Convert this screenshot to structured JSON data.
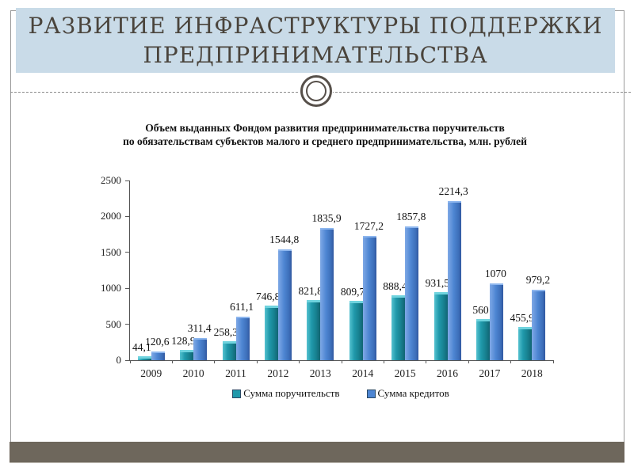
{
  "slide": {
    "title_line1": "РАЗВИТИЕ ИНФРАСТРУКТУРЫ ПОДДЕРЖКИ",
    "title_line2": "ПРЕДПРИНИМАТЕЛЬСТВА",
    "title_bg_color": "#c9dbe8",
    "title_text_color": "#4a443c",
    "footer_bar_color": "#6e675c"
  },
  "chart_data": {
    "type": "bar",
    "title_line1": "Объем выданных Фондом развития предпринимательства поручительств",
    "title_line2": "по обязательствам субъектов малого и среднего предпринимательства, млн. рублей",
    "categories": [
      "2009",
      "2010",
      "2011",
      "2012",
      "2013",
      "2014",
      "2015",
      "2016",
      "2017",
      "2018"
    ],
    "series": [
      {
        "name": "Сумма поручительств",
        "color": "#2099ab",
        "values": [
          44.1,
          128.9,
          258.3,
          746.8,
          821.8,
          809.7,
          888.4,
          931.5,
          560,
          455.9
        ],
        "labels": [
          "44,1",
          "128,9",
          "258,3",
          "746,8",
          "821,8",
          "809,7",
          "888,4",
          "931,5",
          "560",
          "455,9"
        ]
      },
      {
        "name": "Сумма кредитов",
        "color": "#4d85d2",
        "values": [
          120.6,
          311.4,
          611.1,
          1544.8,
          1835.9,
          1727.2,
          1857.8,
          2214.3,
          1070,
          979.2
        ],
        "labels": [
          "120,6",
          "311,4",
          "611,1",
          "1544,8",
          "1835,9",
          "1727,2",
          "1857,8",
          "2214,3",
          "1070",
          "979,2"
        ]
      }
    ],
    "y_ticks": [
      0,
      500,
      1000,
      1500,
      2000,
      2500
    ],
    "ylim": [
      0,
      2500
    ],
    "xlabel": "",
    "ylabel": "",
    "grid": false,
    "legend_position": "bottom"
  }
}
